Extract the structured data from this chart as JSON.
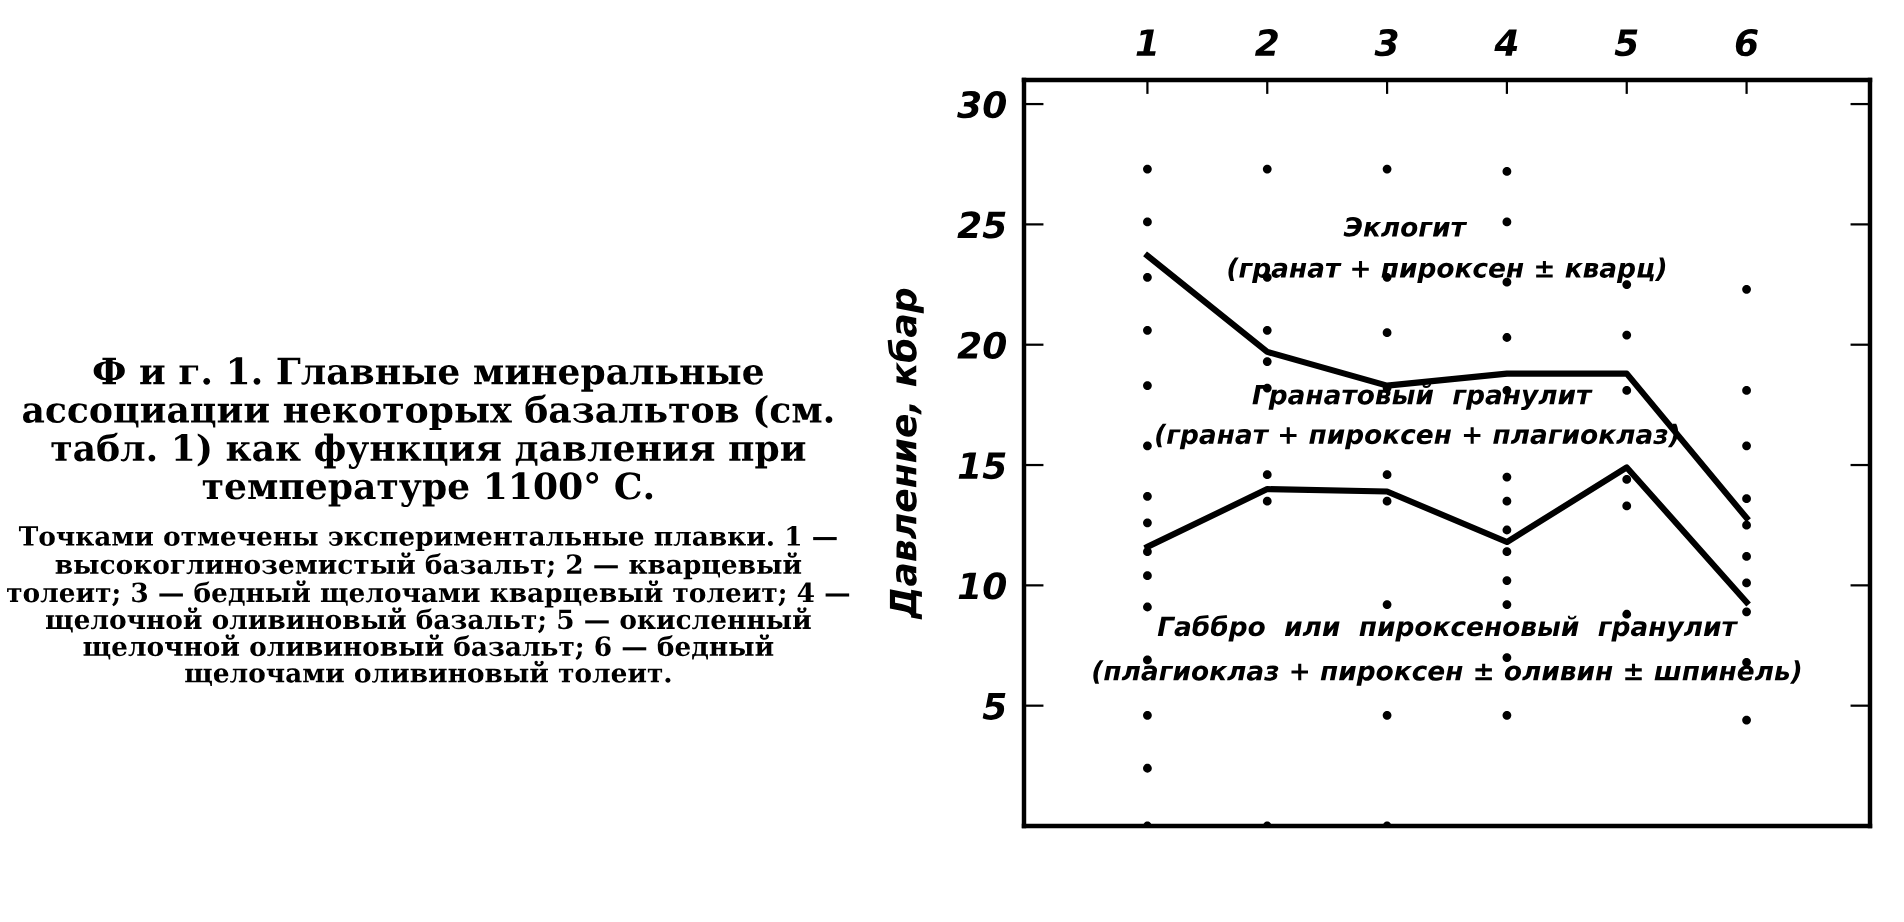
{
  "chart_data": {
    "type": "line",
    "title": "Ф и г. 1. Главные минеральные ассоциации некоторых базальтов (см. табл. 1) как функция давления при температуре 1100° С.",
    "subtitle": "Точками отмечены экспериментальные плавки. 1 — высокоглиноземистый базальт; 2 — кварцевый толеит; 3 — бедный щелочами кварцевый толеит; 4 — щелочной оливиновый базальт; 5 — окисленный щелочной оливиновый базальт; 6 — бедный щелочами оливиновый толеит.",
    "ylabel": "Давление, кбар",
    "categories": [
      "1",
      "2",
      "3",
      "4",
      "5",
      "6"
    ],
    "ylim": [
      0,
      31
    ],
    "yticks": [
      5,
      10,
      15,
      20,
      25,
      30
    ],
    "grid": false,
    "legend": false,
    "annotations": [
      "Эклогит",
      "(гранат + пироксен ± кварц)",
      "Гранатовый  гранулит",
      "(гранат + пироксен + плагиоклаз)",
      "Габбро  или  пироксеновый  гранулит",
      "(плагиоклаз + пироксен ± оливин ± шпинель)"
    ],
    "series": [
      {
        "color": "#000000",
        "marker": "none",
        "values": [
          23.7,
          19.7,
          18.3,
          18.8,
          18.8,
          12.8
        ]
      },
      {
        "color": "#000000",
        "marker": "none",
        "values": [
          11.6,
          14.0,
          13.9,
          11.8,
          14.9,
          9.3
        ]
      },
      {
        "type": "scatter",
        "color": "#000000",
        "marker": "circle",
        "x": [
          "1",
          "1",
          "1",
          "1",
          "1",
          "1",
          "1",
          "1",
          "1",
          "1",
          "1",
          "1",
          "1",
          "1",
          "1",
          "2",
          "2",
          "2",
          "2",
          "2",
          "2",
          "2",
          "2",
          "3",
          "3",
          "3",
          "3",
          "3",
          "3",
          "3",
          "3",
          "3",
          "4",
          "4",
          "4",
          "4",
          "4",
          "4",
          "4",
          "4",
          "4",
          "4",
          "4",
          "4",
          "4",
          "5",
          "5",
          "5",
          "5",
          "5",
          "5",
          "6",
          "6",
          "6",
          "6",
          "6",
          "6",
          "6",
          "6",
          "6",
          "6"
        ],
        "values": [
          27.3,
          25.1,
          22.8,
          20.6,
          18.3,
          15.8,
          13.7,
          12.6,
          11.4,
          10.4,
          9.1,
          6.9,
          4.6,
          2.4,
          0,
          27.3,
          22.8,
          20.6,
          19.3,
          18.2,
          14.6,
          13.5,
          0,
          27.3,
          22.8,
          20.5,
          18.2,
          14.6,
          13.5,
          9.2,
          4.6,
          0,
          27.2,
          25.1,
          22.6,
          20.3,
          18.1,
          14.5,
          13.5,
          12.3,
          11.4,
          10.2,
          9.2,
          7.0,
          4.6,
          22.5,
          20.4,
          18.1,
          14.4,
          13.3,
          8.8,
          22.3,
          18.1,
          15.8,
          13.6,
          12.5,
          11.2,
          10.1,
          8.9,
          6.8,
          4.4
        ]
      }
    ]
  }
}
